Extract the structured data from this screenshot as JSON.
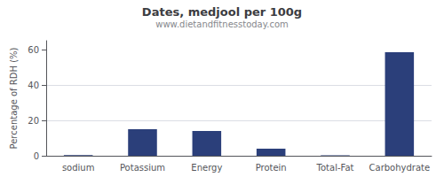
{
  "chart_data": {
    "type": "bar",
    "title": "Dates, medjool per 100g",
    "subtitle": "www.dietandfitnesstoday.com",
    "categories": [
      "sodium",
      "Potassium",
      "Energy",
      "Protein",
      "Total-Fat",
      "Carbohydrate"
    ],
    "values": [
      0.4,
      15.0,
      14.0,
      4.0,
      0.3,
      58.5
    ],
    "color": "#2b3f7a",
    "ylabel": "Percentage of RDH (%)",
    "ylim": [
      0,
      65
    ],
    "yticks": [
      0,
      20,
      40,
      60
    ],
    "grid": true
  }
}
